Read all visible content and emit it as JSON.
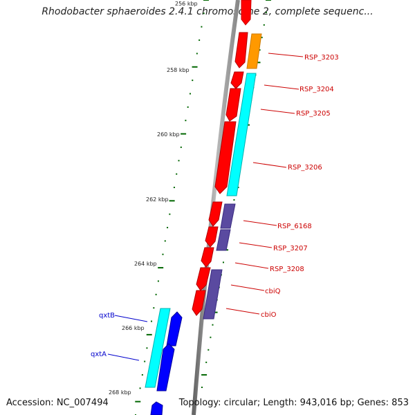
{
  "title": "Rhodobacter sphaeroides 2.4.1 chromosome 2, complete sequenc...",
  "footer": {
    "accession": "Accession: NC_007494",
    "topology": "Topology: circular; Length: 943,016 bp; Genes: 853"
  },
  "ruler": {
    "ticks": [
      "256 kbp",
      "258 kbp",
      "260 kbp",
      "262 kbp",
      "264 kbp",
      "266 kbp",
      "268 kbp"
    ]
  },
  "genes": [
    {
      "id": "g_top",
      "label": "",
      "color": "#ff0000",
      "track": "outer"
    },
    {
      "id": "RSP_3203",
      "label": "RSP_3203",
      "color": "#ff0000",
      "track": "outer"
    },
    {
      "id": "RSP_3203b",
      "label": "",
      "color": "#ff9900",
      "track": "inner"
    },
    {
      "id": "RSP_3204",
      "label": "RSP_3204",
      "color": "#ff0000",
      "track": "outer"
    },
    {
      "id": "RSP_3205",
      "label": "RSP_3205",
      "color": "#ff0000",
      "track": "outer"
    },
    {
      "id": "RSP_3206",
      "label": "RSP_3206",
      "color": "#ff0000",
      "track": "outer"
    },
    {
      "id": "cyan1",
      "label": "",
      "color": "#00ffff",
      "track": "inner"
    },
    {
      "id": "RSP_6168",
      "label": "RSP_6168",
      "color": "#ff0000",
      "track": "outer"
    },
    {
      "id": "RSP_3207",
      "label": "RSP_3207",
      "color": "#ff0000",
      "track": "outer"
    },
    {
      "id": "RSP_3208",
      "label": "RSP_3208",
      "color": "#ff0000",
      "track": "outer"
    },
    {
      "id": "cbiQ",
      "label": "cbiQ",
      "color": "#ff0000",
      "track": "outer"
    },
    {
      "id": "cbiO",
      "label": "cbiO",
      "color": "#ff0000",
      "track": "outer"
    },
    {
      "id": "qxtB",
      "label": "qxtB",
      "color": "#00ffff",
      "track": "inner"
    },
    {
      "id": "qxtA",
      "label": "qxtA",
      "color": "#0000ff",
      "track": "outer"
    }
  ],
  "colors": {
    "forward_label": "#cc0000",
    "reverse_label": "#0000cc",
    "ruler_tick": "#006600",
    "backbone": "#999999"
  }
}
